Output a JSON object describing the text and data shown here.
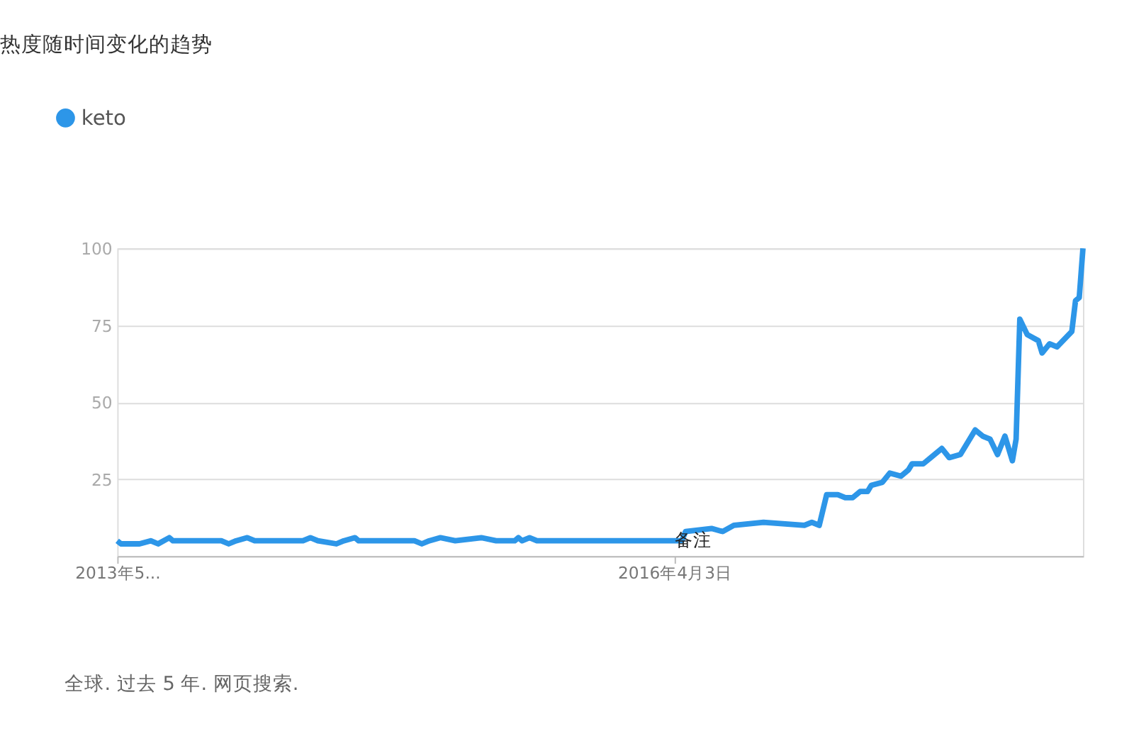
{
  "chart_data": {
    "type": "line",
    "title": "热度随时间变化的趋势",
    "x": [
      "2013-05-19",
      "2013-05-26",
      "2013-06-30",
      "2013-07-21",
      "2013-08-04",
      "2013-08-25",
      "2013-09-01",
      "2013-12-01",
      "2013-12-15",
      "2013-12-29",
      "2014-01-19",
      "2014-02-02",
      "2014-05-04",
      "2014-05-18",
      "2014-06-01",
      "2014-07-06",
      "2014-07-20",
      "2014-08-10",
      "2014-08-17",
      "2014-11-30",
      "2014-12-14",
      "2014-12-28",
      "2015-01-18",
      "2015-02-15",
      "2015-04-05",
      "2015-05-03",
      "2015-06-07",
      "2015-06-14",
      "2015-06-21",
      "2015-07-05",
      "2015-07-19",
      "2015-08-23",
      "2016-04-17",
      "2016-04-24",
      "2016-06-12",
      "2016-07-03",
      "2016-07-24",
      "2016-09-18",
      "2016-12-04",
      "2016-12-18",
      "2017-01-01",
      "2017-01-15",
      "2017-02-05",
      "2017-02-19",
      "2017-03-05",
      "2017-03-19",
      "2017-04-02",
      "2017-04-09",
      "2017-04-30",
      "2017-05-14",
      "2017-06-04",
      "2017-06-18",
      "2017-06-25",
      "2017-07-16",
      "2017-07-30",
      "2017-08-20",
      "2017-09-03",
      "2017-09-24",
      "2017-10-22",
      "2017-11-05",
      "2017-11-19",
      "2017-12-03",
      "2017-12-17",
      "2017-12-31",
      "2018-01-07",
      "2018-01-14",
      "2018-01-28",
      "2018-02-18",
      "2018-02-25",
      "2018-03-11",
      "2018-03-25",
      "2018-04-22",
      "2018-04-29",
      "2018-05-06",
      "2018-05-13"
    ],
    "series": [
      {
        "name": "keto",
        "color": "#2d96e8",
        "values": [
          5,
          4,
          4,
          5,
          4,
          6,
          5,
          5,
          4,
          5,
          6,
          5,
          5,
          6,
          5,
          4,
          5,
          6,
          5,
          5,
          4,
          5,
          6,
          5,
          6,
          5,
          5,
          6,
          5,
          6,
          5,
          5,
          5,
          8,
          9,
          8,
          10,
          11,
          10,
          11,
          10,
          20,
          20,
          19,
          19,
          21,
          21,
          23,
          24,
          27,
          26,
          28,
          30,
          30,
          32,
          35,
          32,
          33,
          41,
          39,
          38,
          33,
          39,
          31,
          38,
          77,
          72,
          70,
          66,
          69,
          68,
          73,
          83,
          84,
          100
        ]
      }
    ],
    "xlim": [
      "2013-05-19",
      "2018-05-13"
    ],
    "xticks": [
      {
        "value": "2013-05-19",
        "label": "2013年5..."
      },
      {
        "value": "2016-04-03",
        "label": "2016年4月3日"
      }
    ],
    "ylim": [
      0,
      100
    ],
    "yticks": [
      25,
      50,
      75,
      100
    ],
    "grid": "y",
    "legend": "top left",
    "marker": "none",
    "line_style": "solid",
    "annotations": [
      {
        "text": "备注",
        "x": "2016-04-03",
        "y": 5
      },
      "全球. 过去 5 年. 网页搜索."
    ]
  }
}
